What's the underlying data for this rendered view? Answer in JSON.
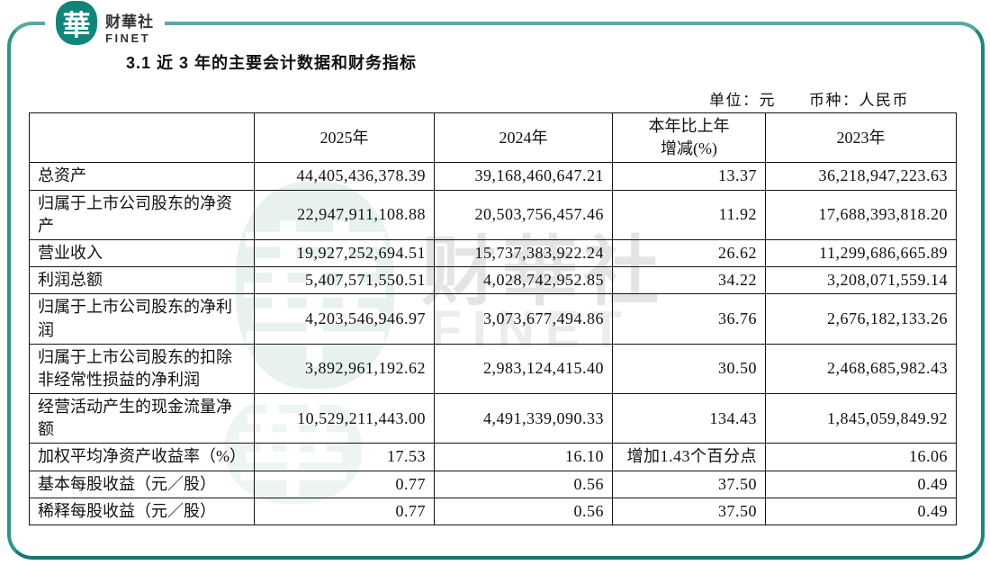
{
  "brand": {
    "seal_char": "華",
    "name_cn": "财華社",
    "name_en": "FINET"
  },
  "title": "3.1 近 3 年的主要会计数据和财务指标",
  "unit_note": "单位：元　　币种：人民币",
  "table": {
    "header": {
      "metric": "",
      "y2025": "2025年",
      "y2024": "2024年",
      "change": "本年比上年\n增减(%)",
      "y2023": "2023年"
    },
    "rows": [
      {
        "label": "总资产",
        "y2025": "44,405,436,378.39",
        "y2024": "39,168,460,647.21",
        "change": "13.37",
        "y2023": "36,218,947,223.63"
      },
      {
        "label": "归属于上市公司股东的净资产",
        "y2025": "22,947,911,108.88",
        "y2024": "20,503,756,457.46",
        "change": "11.92",
        "y2023": "17,688,393,818.20"
      },
      {
        "label": "营业收入",
        "y2025": "19,927,252,694.51",
        "y2024": "15,737,383,922.24",
        "change": "26.62",
        "y2023": "11,299,686,665.89"
      },
      {
        "label": "利润总额",
        "y2025": "5,407,571,550.51",
        "y2024": "4,028,742,952.85",
        "change": "34.22",
        "y2023": "3,208,071,559.14"
      },
      {
        "label": "归属于上市公司股东的净利润",
        "y2025": "4,203,546,946.97",
        "y2024": "3,073,677,494.86",
        "change": "36.76",
        "y2023": "2,676,182,133.26"
      },
      {
        "label": "归属于上市公司股东的扣除非经常性损益的净利润",
        "y2025": "3,892,961,192.62",
        "y2024": "2,983,124,415.40",
        "change": "30.50",
        "y2023": "2,468,685,982.43"
      },
      {
        "label": "经营活动产生的现金流量净额",
        "y2025": "10,529,211,443.00",
        "y2024": "4,491,339,090.33",
        "change": "134.43",
        "y2023": "1,845,059,849.92"
      },
      {
        "label": "加权平均净资产收益率（%）",
        "y2025": "17.53",
        "y2024": "16.10",
        "change": "增加1.43个百分点",
        "y2023": "16.06"
      },
      {
        "label": "基本每股收益（元／股）",
        "y2025": "0.77",
        "y2024": "0.56",
        "change": "37.50",
        "y2023": "0.49"
      },
      {
        "label": "稀释每股收益（元／股）",
        "y2025": "0.77",
        "y2024": "0.56",
        "change": "37.50",
        "y2023": "0.49"
      }
    ]
  },
  "watermark": {
    "seal_char": "華",
    "text_cn": "财華社",
    "text_en": "FINET"
  },
  "colors": {
    "brand_teal": "#11857a",
    "frame_teal": "#1f867d",
    "watermark_teal_bg": "#e7f2f0",
    "watermark_gray": "#e4e4e4"
  }
}
